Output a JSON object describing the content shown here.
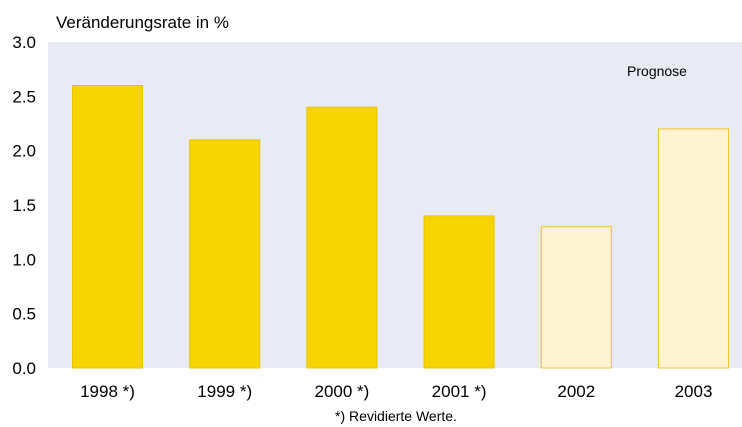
{
  "chart_data": {
    "type": "bar",
    "ylabel": "Veränderungsrate in %",
    "categories": [
      "1998 *)",
      "1999 *)",
      "2000 *)",
      "2001 *)",
      "2002",
      "2003"
    ],
    "values": [
      2.6,
      2.1,
      2.4,
      1.4,
      1.3,
      2.2
    ],
    "forecast": [
      false,
      false,
      false,
      false,
      true,
      true
    ],
    "ylim": [
      0,
      3.0
    ],
    "yticks": [
      "0.0",
      "0.5",
      "1.0",
      "1.5",
      "2.0",
      "2.5",
      "3.0"
    ],
    "annotation": "Prognose",
    "footnote": "*) Revidierte Werte.",
    "grid": false,
    "colors": {
      "plot_background": "#E8EAF6",
      "actual_fill": "#F5D500",
      "actual_stroke": "#E8C200",
      "forecast_fill": "#FFF4CF",
      "forecast_stroke": "#F3C233"
    }
  }
}
